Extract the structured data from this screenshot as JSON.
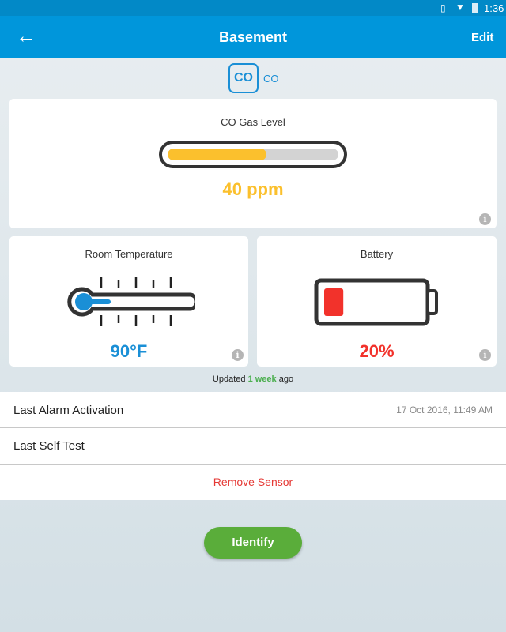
{
  "status_bar": {
    "time": "1:36",
    "icons": [
      "vibrate-icon",
      "wifi-icon",
      "battery-charging-icon"
    ]
  },
  "app_bar": {
    "title": "Basement",
    "edit_label": "Edit",
    "back_icon": "arrow-left-icon"
  },
  "sensor": {
    "badge": "CO",
    "type_label": "CO"
  },
  "gas": {
    "label": "CO Gas Level",
    "value": "40 ppm",
    "level_percent": 58,
    "color": "#fbc02d"
  },
  "temperature": {
    "label": "Room Temperature",
    "value": "90°F",
    "color": "#1a8fd6"
  },
  "battery": {
    "label": "Battery",
    "value": "20%",
    "level_percent": 20,
    "color": "#f2322b"
  },
  "updated": {
    "prefix": "Updated",
    "highlight": "1 week",
    "suffix": "ago",
    "highlight_color": "#4caf50"
  },
  "list": {
    "last_alarm_label": "Last Alarm Activation",
    "last_alarm_value": "17 Oct 2016, 11:49 AM",
    "self_test_label": "Last Self Test",
    "remove_label": "Remove Sensor"
  },
  "identify_label": "Identify"
}
